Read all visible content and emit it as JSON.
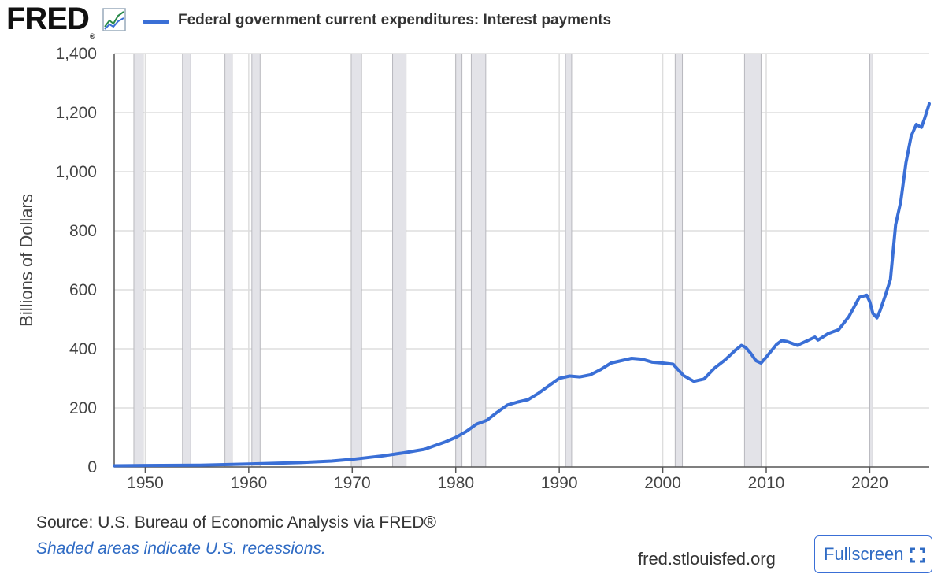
{
  "header": {
    "logo_text": "FRED",
    "logo_reg": "®",
    "legend_label": "Federal government current expenditures: Interest payments",
    "series_color": "#3a6fd6"
  },
  "footer": {
    "source": "Source: U.S. Bureau of Economic Analysis via FRED®",
    "note": "Shaded areas indicate U.S. recessions.",
    "site": "fred.stlouisfed.org",
    "fullscreen_label": "Fullscreen"
  },
  "chart_data": {
    "type": "line",
    "title": "Federal government current expenditures: Interest payments",
    "xlabel": "",
    "ylabel": "Billions of Dollars",
    "xlim": [
      1947,
      2025.75
    ],
    "ylim": [
      0,
      1400
    ],
    "x_ticks": [
      1950,
      1960,
      1970,
      1980,
      1990,
      2000,
      2010,
      2020
    ],
    "y_ticks": [
      0,
      200,
      400,
      600,
      800,
      1000,
      1200,
      1400
    ],
    "y_tick_labels": [
      "0",
      "200",
      "400",
      "600",
      "800",
      "1,000",
      "1,200",
      "1,400"
    ],
    "grid": true,
    "recessions": [
      [
        1948.9,
        1949.8
      ],
      [
        1953.6,
        1954.4
      ],
      [
        1957.7,
        1958.4
      ],
      [
        1960.3,
        1961.1
      ],
      [
        1969.9,
        1970.9
      ],
      [
        1973.9,
        1975.2
      ],
      [
        1980.0,
        1980.6
      ],
      [
        1981.5,
        1982.9
      ],
      [
        1990.6,
        1991.2
      ],
      [
        2001.2,
        2001.9
      ],
      [
        2007.9,
        2009.5
      ],
      [
        2020.0,
        2020.3
      ]
    ],
    "series": [
      {
        "name": "Federal government current expenditures: Interest payments",
        "color": "#3a6fd6",
        "x": [
          1947,
          1950,
          1955,
          1960,
          1965,
          1968,
          1970,
          1973,
          1975,
          1977,
          1979,
          1980,
          1981,
          1982,
          1983,
          1984,
          1985,
          1986,
          1987,
          1988,
          1989,
          1990,
          1991,
          1992,
          1993,
          1994,
          1995,
          1996,
          1997,
          1998,
          1999,
          2000,
          2001,
          2002,
          2003,
          2004,
          2005,
          2006,
          2007,
          2007.6,
          2008,
          2008.5,
          2009,
          2009.5,
          2010,
          2011,
          2011.5,
          2012,
          2013,
          2014,
          2014.7,
          2015,
          2016,
          2017,
          2018,
          2019,
          2019.7,
          2020,
          2020.3,
          2020.7,
          2021,
          2021.5,
          2022,
          2022.5,
          2023,
          2023.5,
          2024,
          2024.5,
          2025,
          2025.3,
          2025.75
        ],
        "values": [
          4,
          5,
          6,
          10,
          15,
          20,
          26,
          38,
          48,
          60,
          85,
          100,
          120,
          145,
          158,
          185,
          210,
          220,
          228,
          250,
          275,
          300,
          308,
          305,
          312,
          330,
          352,
          360,
          368,
          365,
          355,
          352,
          348,
          310,
          290,
          298,
          335,
          362,
          395,
          412,
          405,
          385,
          360,
          352,
          372,
          415,
          428,
          425,
          412,
          428,
          440,
          430,
          452,
          465,
          510,
          575,
          582,
          560,
          520,
          505,
          530,
          580,
          635,
          820,
          900,
          1030,
          1120,
          1160,
          1150,
          1180,
          1230
        ]
      }
    ]
  }
}
